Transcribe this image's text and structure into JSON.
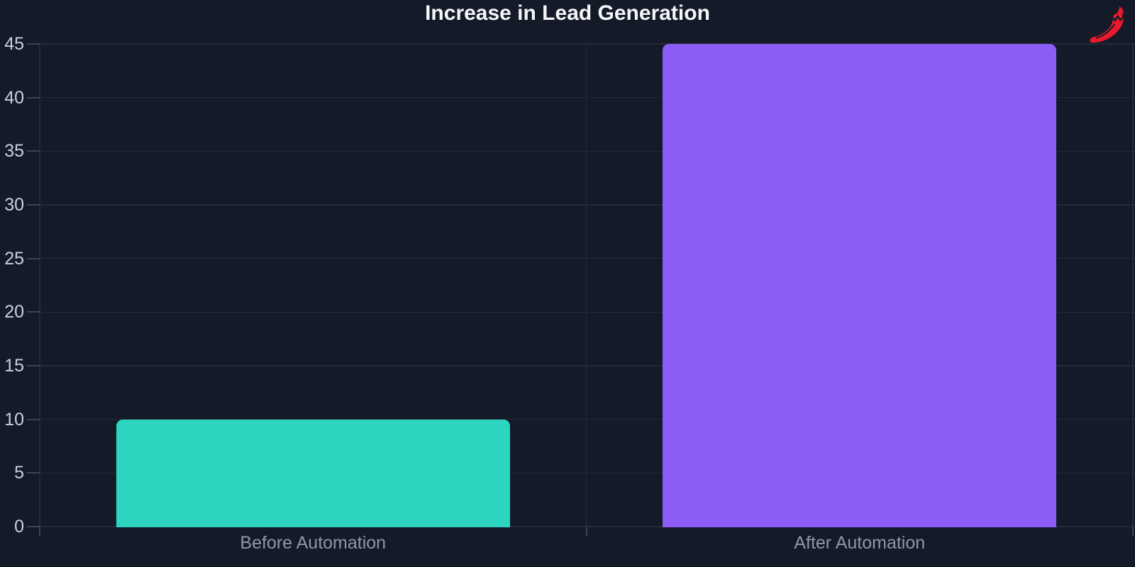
{
  "chart_data": {
    "type": "bar",
    "title": "Increase in Lead Generation",
    "categories": [
      "Before Automation",
      "After Automation"
    ],
    "values": [
      10,
      45
    ],
    "bar_colors": [
      "#2dd4bf",
      "#8b5cf6"
    ],
    "ylim": [
      0,
      45
    ],
    "yticks": [
      0,
      5,
      10,
      15,
      20,
      25,
      30,
      35,
      40,
      45
    ],
    "xlabel": "",
    "ylabel": "",
    "grid": true,
    "legend": "none",
    "background": "#141a28",
    "title_color": "#f4f6fa",
    "axis_label_color": "#ccd0db",
    "category_label_color": "#9096aa",
    "grid_color": "#242a3a",
    "tick_color": "#3c4354"
  },
  "decor": {
    "pepper_icon_color": "#ea1a2c"
  }
}
